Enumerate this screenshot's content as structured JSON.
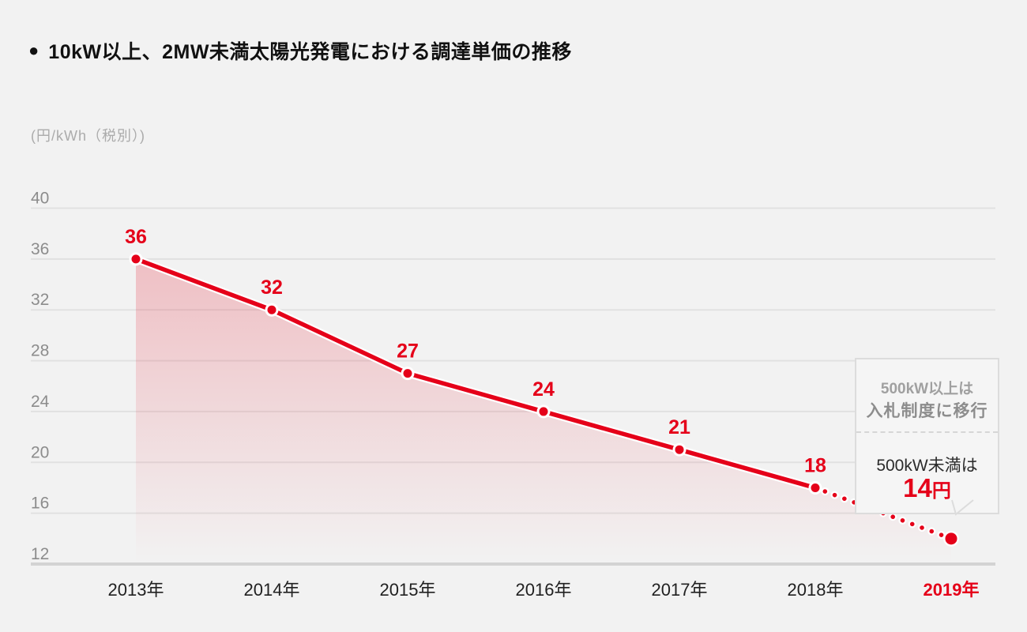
{
  "header": {
    "bullet": "●",
    "title": "10kW以上、2MW未満太陽光発電における調達単価の推移"
  },
  "chart_data": {
    "type": "line",
    "title": "10kW以上、2MW未満太陽光発電における調達単価の推移",
    "unit_label": "(円/kWh（税別）)",
    "categories": [
      "2013年",
      "2014年",
      "2015年",
      "2016年",
      "2017年",
      "2018年",
      "2019年"
    ],
    "values": [
      36,
      32,
      27,
      24,
      21,
      18,
      14
    ],
    "point_labels": [
      "36",
      "32",
      "27",
      "24",
      "21",
      "18",
      ""
    ],
    "dotted_segment_start_index": 5,
    "highlight_category_index": 6,
    "yticks": [
      40,
      36,
      32,
      28,
      24,
      20,
      16,
      12
    ],
    "ylim": [
      12,
      40
    ],
    "grid": true,
    "legend": "none",
    "area_fill": true,
    "callout": {
      "upper_line1": "500kW以上は",
      "upper_line2": "入札制度に移行",
      "lower_label": "500kW未満は",
      "lower_value": "14",
      "lower_unit": "円"
    },
    "colors": {
      "line": "#e50019",
      "point_label": "#e50019",
      "grid": "#e1e1e1",
      "axis": "#d3d3d3",
      "tick_text": "#8c8c8c",
      "year_text": "#212121",
      "highlight_year_text": "#e50019",
      "casing": "#ffffff",
      "fill_top": "rgba(227,10,32,0.22)",
      "fill_mid": "rgba(227,10,32,0.12)",
      "fill_bottom": "rgba(227,10,32,0)"
    }
  }
}
